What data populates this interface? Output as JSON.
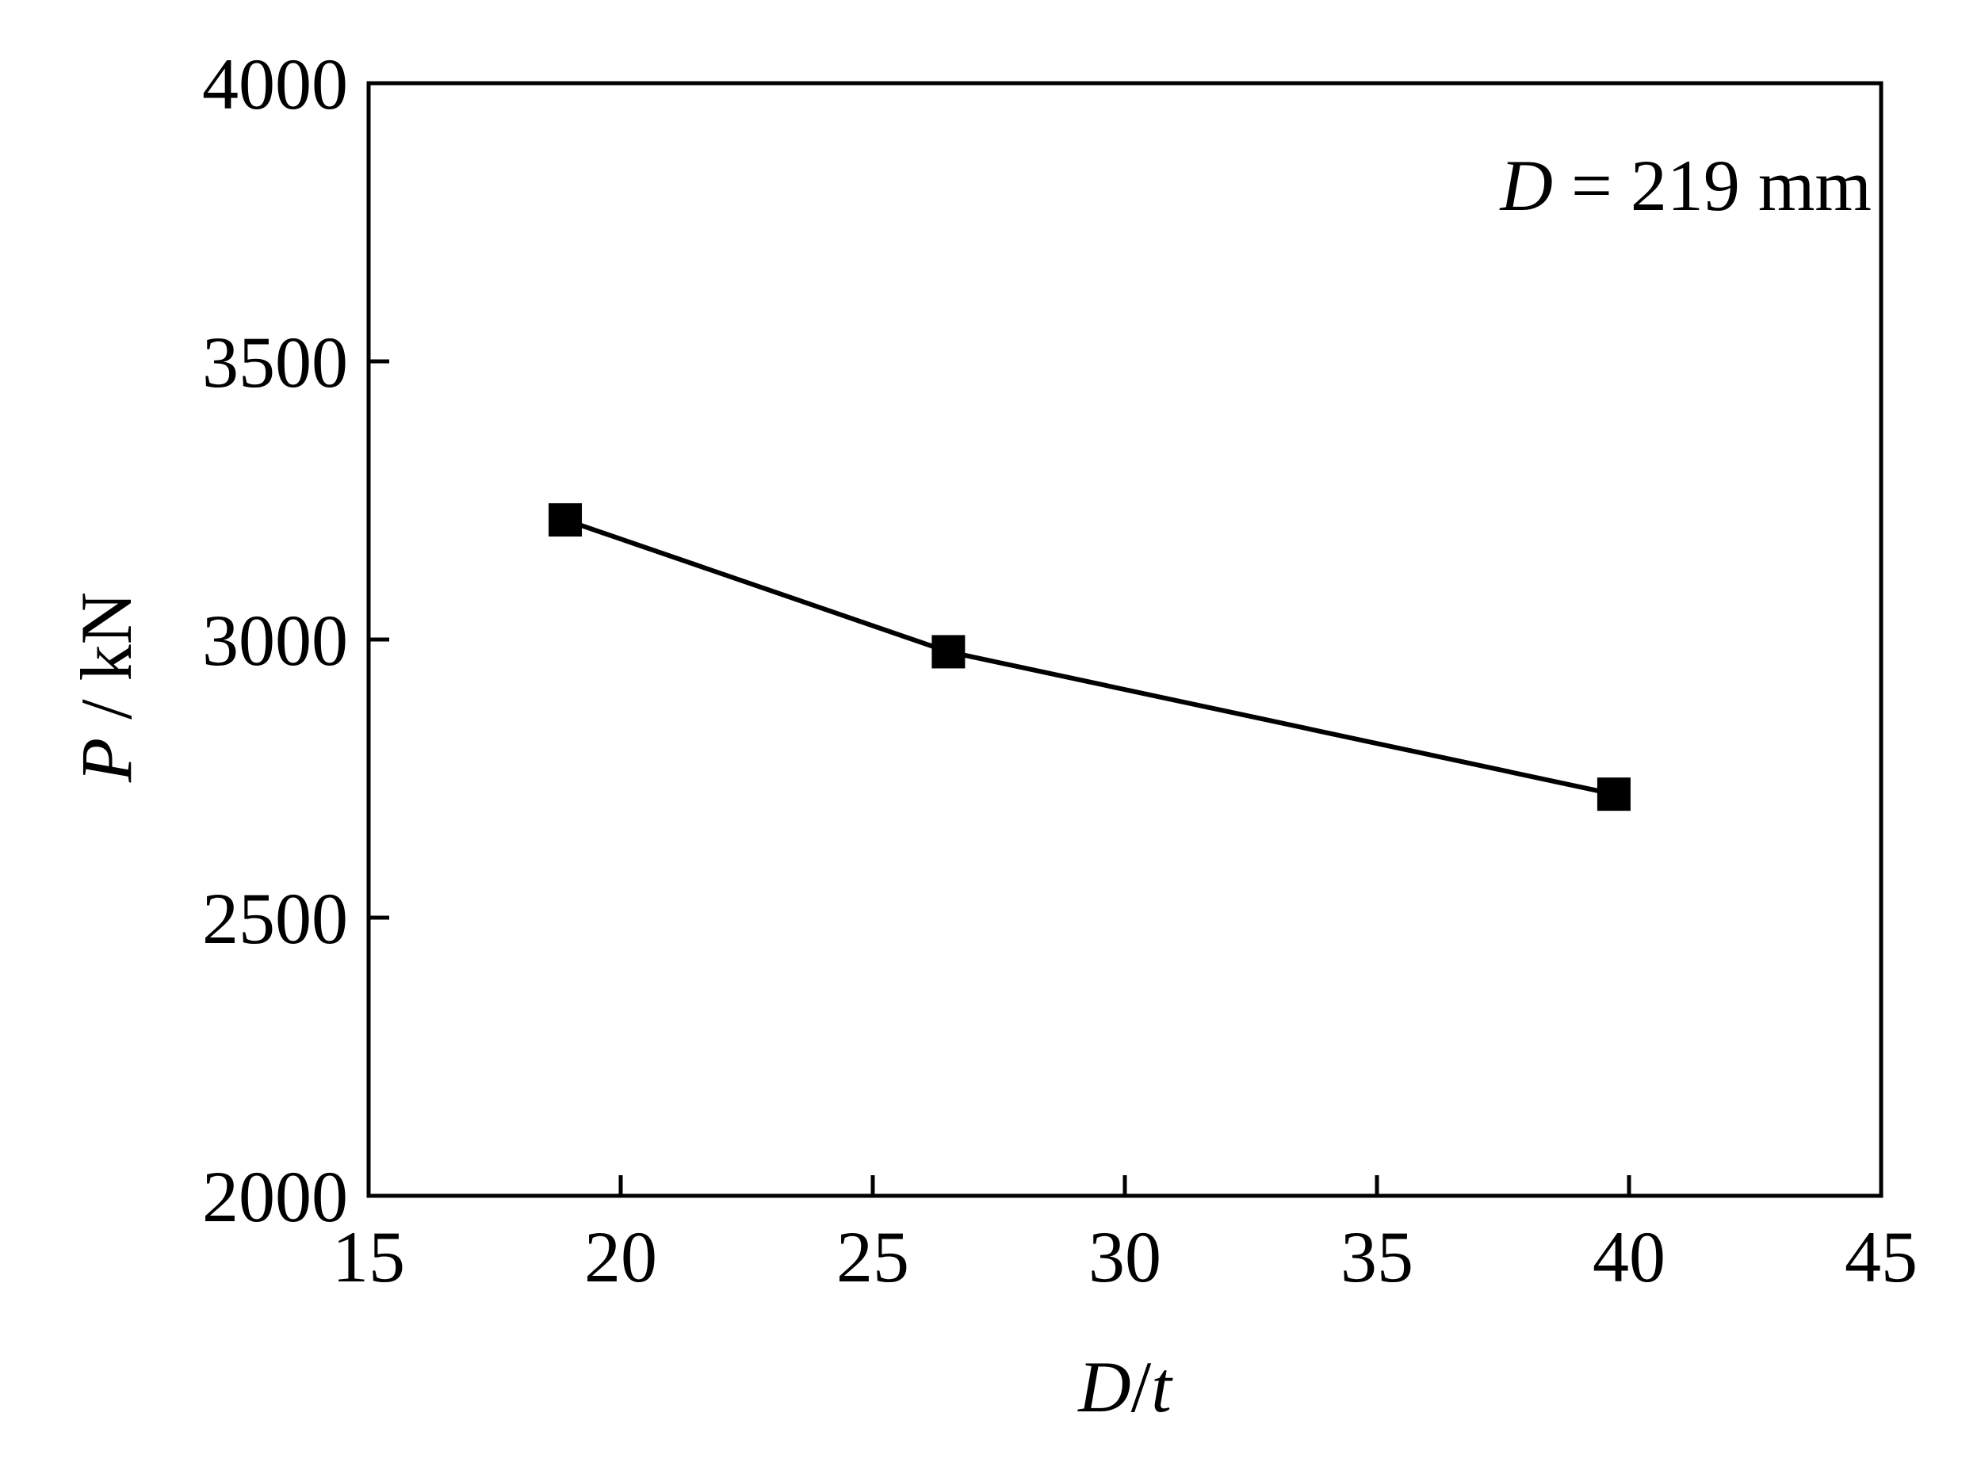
{
  "chart_data": {
    "type": "line",
    "x": [
      18.9,
      26.5,
      39.7
    ],
    "series": [
      {
        "values": [
          3215,
          2978,
          2722
        ]
      }
    ],
    "xlabel": {
      "var": "D",
      "sep": "/",
      "var2": "t"
    },
    "ylabel": {
      "var": "P",
      "unit": " / kN"
    },
    "xlim": [
      15,
      45
    ],
    "ylim": [
      2000,
      4000
    ],
    "xticks": [
      15,
      20,
      25,
      30,
      35,
      40,
      45
    ],
    "yticks": [
      2000,
      2500,
      3000,
      3500,
      4000
    ],
    "annotation": {
      "var": "D",
      "text": " = 219 mm"
    },
    "grid": false,
    "legend": "none",
    "marker": "square",
    "color": "#000000"
  }
}
